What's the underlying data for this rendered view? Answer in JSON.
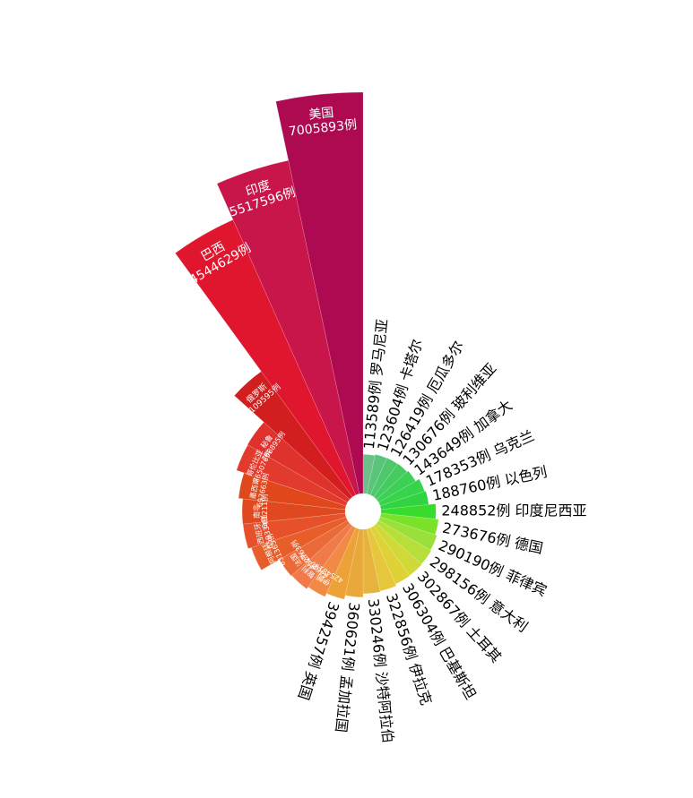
{
  "chart_data": {
    "type": "rose",
    "title": "",
    "unit": "例",
    "categories": [
      "罗马尼亚",
      "卡塔尔",
      "厄瓜多尔",
      "玻利维亚",
      "加拿大",
      "乌克兰",
      "以色列",
      "印度尼西亚",
      "德国",
      "菲律宾",
      "意大利",
      "土耳其",
      "巴基斯坦",
      "伊拉克",
      "沙特阿拉伯",
      "孟加拉国",
      "英国",
      "伊朗",
      "智利",
      "法国",
      "阿根廷",
      "西班牙",
      "南非",
      "墨西哥",
      "哥伦比亚",
      "秘鲁",
      "俄罗斯",
      "巴西",
      "印度",
      "美国"
    ],
    "values": [
      113589,
      123604,
      126419,
      130676,
      143649,
      178353,
      188760,
      248852,
      273676,
      290190,
      298156,
      302867,
      306304,
      322856,
      330246,
      360621,
      394257,
      425481,
      446274,
      452763,
      631365,
      659334,
      661211,
      697663,
      765076,
      768895,
      1109595,
      4544629,
      5517596,
      7005893
    ],
    "colors": [
      "#6fbf8a",
      "#5ac47a",
      "#4fc86c",
      "#46cb61",
      "#3ecf56",
      "#36d34b",
      "#30d440",
      "#38dc2c",
      "#7be22a",
      "#9be03a",
      "#b6df3a",
      "#cfd938",
      "#dfd237",
      "#e6c73c",
      "#e6b43e",
      "#e8a93a",
      "#eda238",
      "#f08a44",
      "#f07a4a",
      "#eb6a3a",
      "#e85e2a",
      "#e6502a",
      "#e04820",
      "#e0471b",
      "#e23a2c",
      "#e0322c",
      "#d21e1e",
      "#e0162e",
      "#c8164a",
      "#ad0a52"
    ]
  }
}
